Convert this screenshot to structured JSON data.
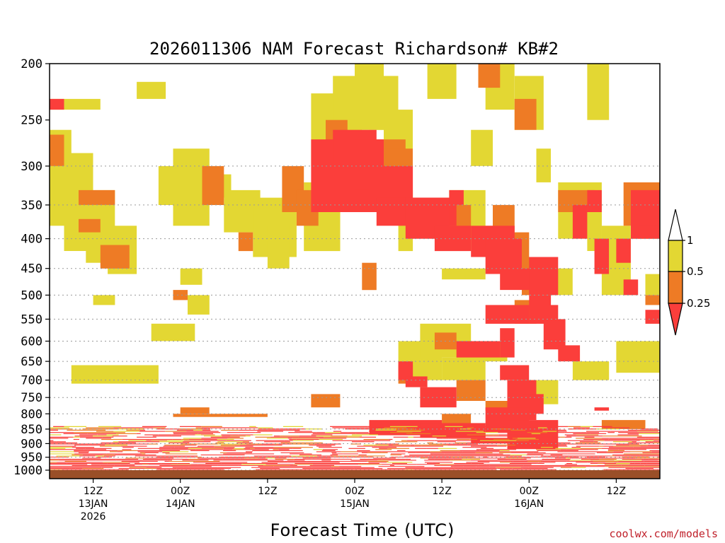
{
  "chart_data": {
    "type": "heatmap",
    "title": "2026011306 NAM Forecast Richardson# KB#2",
    "xlabel": "Forecast Time (UTC)",
    "ylabel": "",
    "yaxis": {
      "scale": "log-pressure",
      "range_hpa": [
        1000,
        200
      ],
      "ticks": [
        200,
        250,
        300,
        350,
        400,
        450,
        500,
        550,
        600,
        650,
        700,
        750,
        800,
        850,
        900,
        950,
        1000
      ]
    },
    "xaxis": {
      "range_hours": [
        0,
        84
      ],
      "ticks": [
        {
          "hour": 6,
          "line1": "12Z",
          "line2": "13JAN",
          "line3": "2026"
        },
        {
          "hour": 18,
          "line1": "00Z",
          "line2": "14JAN",
          "line3": ""
        },
        {
          "hour": 30,
          "line1": "12Z",
          "line2": "",
          "line3": ""
        },
        {
          "hour": 42,
          "line1": "00Z",
          "line2": "15JAN",
          "line3": ""
        },
        {
          "hour": 54,
          "line1": "12Z",
          "line2": "",
          "line3": ""
        },
        {
          "hour": 66,
          "line1": "00Z",
          "line2": "16JAN",
          "line3": ""
        },
        {
          "hour": 78,
          "line1": "12Z",
          "line2": "",
          "line3": ""
        }
      ]
    },
    "gridlines_hpa": [
      300,
      350,
      400,
      450,
      500,
      550,
      600,
      650,
      700,
      750,
      800,
      850,
      900,
      950,
      1000
    ],
    "colorbar": {
      "levels": [
        "1",
        "0.5",
        "0.25"
      ],
      "bins": [
        {
          "label": "above 1",
          "color": "#ffffff"
        },
        {
          "label": "0.5 - 1",
          "color": "#e3d733"
        },
        {
          "label": "0.25 - 0.5",
          "color": "#ee7b25"
        },
        {
          "label": "below 0.25",
          "color": "#fb3e3b"
        }
      ]
    },
    "ground_color": "#9a4f28",
    "series": [
      {
        "name": "Ri 0.5-1",
        "color": "#e3d733",
        "cells": [
          [
            0,
            230,
            7,
            240
          ],
          [
            0,
            260,
            3,
            380
          ],
          [
            2,
            285,
            6,
            420
          ],
          [
            5,
            330,
            9,
            440
          ],
          [
            8,
            380,
            12,
            460
          ],
          [
            6,
            500,
            9,
            520
          ],
          [
            3,
            660,
            15,
            710
          ],
          [
            12,
            215,
            16,
            230
          ],
          [
            15,
            300,
            18,
            350
          ],
          [
            14,
            560,
            20,
            600
          ],
          [
            17,
            280,
            22,
            380
          ],
          [
            21,
            310,
            25,
            340
          ],
          [
            18,
            450,
            21,
            480
          ],
          [
            19,
            500,
            22,
            540
          ],
          [
            24,
            330,
            29,
            390
          ],
          [
            28,
            340,
            34,
            430
          ],
          [
            30,
            380,
            33,
            450
          ],
          [
            36,
            225,
            43,
            300
          ],
          [
            35,
            320,
            40,
            420
          ],
          [
            39,
            210,
            44,
            250
          ],
          [
            42,
            200,
            46,
            260
          ],
          [
            44,
            210,
            48,
            260
          ],
          [
            46,
            240,
            50,
            300
          ],
          [
            48,
            330,
            50,
            420
          ],
          [
            48,
            600,
            54,
            700
          ],
          [
            52,
            200,
            56,
            230
          ],
          [
            54,
            640,
            60,
            700
          ],
          [
            51,
            560,
            58,
            640
          ],
          [
            55,
            330,
            60,
            400
          ],
          [
            54,
            450,
            60,
            470
          ],
          [
            56,
            600,
            63,
            650
          ],
          [
            58,
            380,
            63,
            420
          ],
          [
            58,
            260,
            61,
            300
          ],
          [
            60,
            200,
            64,
            240
          ],
          [
            64,
            700,
            70,
            770
          ],
          [
            64,
            210,
            68,
            260
          ],
          [
            68,
            450,
            72,
            500
          ],
          [
            72,
            650,
            77,
            700
          ],
          [
            74,
            200,
            77,
            250
          ],
          [
            76,
            380,
            80,
            500
          ],
          [
            78,
            600,
            84,
            680
          ],
          [
            82,
            460,
            84,
            500
          ],
          [
            70,
            320,
            76,
            400
          ],
          [
            67,
            280,
            69,
            320
          ],
          [
            74,
            350,
            76,
            420
          ]
        ]
      },
      {
        "name": "Ri 0.25-0.5",
        "color": "#ee7b25",
        "cells": [
          [
            0,
            265,
            2,
            300
          ],
          [
            4,
            330,
            9,
            350
          ],
          [
            7,
            410,
            11,
            450
          ],
          [
            4,
            370,
            7,
            390
          ],
          [
            17,
            490,
            19,
            510
          ],
          [
            21,
            300,
            24,
            350
          ],
          [
            18,
            780,
            22,
            800
          ],
          [
            17,
            800,
            30,
            810
          ],
          [
            26,
            390,
            28,
            420
          ],
          [
            32,
            300,
            35,
            360
          ],
          [
            34,
            330,
            37,
            380
          ],
          [
            38,
            250,
            41,
            300
          ],
          [
            40,
            270,
            43,
            330
          ],
          [
            36,
            740,
            40,
            780
          ],
          [
            45,
            270,
            49,
            330
          ],
          [
            46,
            280,
            50,
            330
          ],
          [
            43,
            440,
            45,
            490
          ],
          [
            46,
            330,
            48,
            360
          ],
          [
            48,
            660,
            50,
            710
          ],
          [
            56,
            700,
            60,
            760
          ],
          [
            55,
            350,
            58,
            400
          ],
          [
            61,
            350,
            64,
            420
          ],
          [
            63,
            390,
            66,
            460
          ],
          [
            64,
            230,
            67,
            260
          ],
          [
            59,
            200,
            62,
            220
          ],
          [
            70,
            330,
            75,
            360
          ],
          [
            79,
            320,
            84,
            380
          ],
          [
            80,
            370,
            84,
            400
          ],
          [
            82,
            500,
            84,
            520
          ],
          [
            76,
            820,
            82,
            850
          ],
          [
            60,
            760,
            66,
            790
          ],
          [
            54,
            800,
            58,
            830
          ],
          [
            53,
            580,
            56,
            620
          ],
          [
            65,
            430,
            68,
            500
          ],
          [
            64,
            510,
            67,
            560
          ]
        ]
      },
      {
        "name": "Ri below 0.25",
        "color": "#fb3e3b",
        "cells": [
          [
            0,
            230,
            2,
            240
          ],
          [
            36,
            270,
            44,
            360
          ],
          [
            39,
            260,
            45,
            300
          ],
          [
            42,
            270,
            46,
            330
          ],
          [
            44,
            300,
            50,
            360
          ],
          [
            45,
            340,
            56,
            380
          ],
          [
            49,
            340,
            55,
            400
          ],
          [
            53,
            380,
            58,
            420
          ],
          [
            58,
            380,
            64,
            430
          ],
          [
            60,
            400,
            65,
            460
          ],
          [
            62,
            450,
            67,
            490
          ],
          [
            60,
            520,
            66,
            560
          ],
          [
            66,
            520,
            70,
            560
          ],
          [
            68,
            550,
            71,
            620
          ],
          [
            62,
            570,
            64,
            640
          ],
          [
            56,
            600,
            62,
            640
          ],
          [
            62,
            660,
            66,
            700
          ],
          [
            63,
            700,
            67,
            820
          ],
          [
            65,
            740,
            68,
            800
          ],
          [
            70,
            610,
            73,
            650
          ],
          [
            75,
            780,
            77,
            790
          ],
          [
            74,
            330,
            76,
            360
          ],
          [
            72,
            350,
            74,
            400
          ],
          [
            78,
            400,
            80,
            440
          ],
          [
            80,
            330,
            84,
            400
          ],
          [
            81,
            380,
            84,
            400
          ],
          [
            44,
            820,
            54,
            870
          ],
          [
            46,
            850,
            52,
            870
          ],
          [
            48,
            650,
            50,
            700
          ],
          [
            49,
            690,
            52,
            720
          ],
          [
            51,
            720,
            56,
            780
          ],
          [
            60,
            780,
            66,
            860
          ],
          [
            51,
            830,
            60,
            880
          ],
          [
            63,
            820,
            70,
            920
          ],
          [
            58,
            880,
            67,
            900
          ],
          [
            55,
            330,
            57,
            350
          ],
          [
            66,
            430,
            70,
            500
          ],
          [
            66,
            500,
            69,
            530
          ],
          [
            75,
            400,
            77,
            460
          ],
          [
            79,
            470,
            81,
            500
          ],
          [
            82,
            530,
            84,
            560
          ]
        ]
      }
    ],
    "boundary_layer_note": "Alternating red / orange / yellow bands fill roughly 850-1000 hPa across all forecast hours."
  },
  "credit": "coolwx.com/models"
}
